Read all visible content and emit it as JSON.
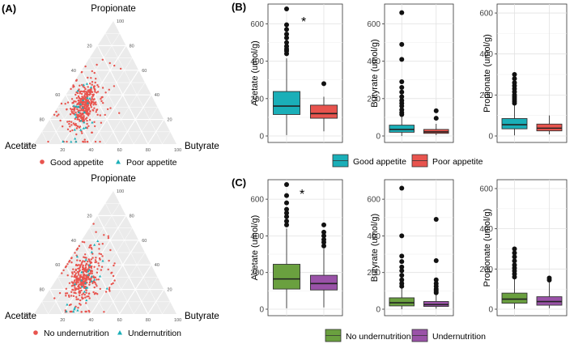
{
  "panels": {
    "A": "(A)",
    "B": "(B)",
    "C": "(C)"
  },
  "ternary": {
    "top_label": "Propionate",
    "left_label": "Acetate",
    "right_label": "Butyrate",
    "tick_values": [
      20,
      40,
      60,
      80,
      100
    ],
    "colors": {
      "red": "#e8544e",
      "teal": "#1aafb8"
    },
    "plots": [
      {
        "id": "appetite",
        "legend": [
          {
            "label": "Good appetite",
            "marker": "circle",
            "color": "#e8544e"
          },
          {
            "label": "Poor appetite",
            "marker": "triangle",
            "color": "#1aafb8"
          }
        ],
        "red_count": 360,
        "teal_count": 30,
        "centroid": {
          "acetate": 0.52,
          "butyrate": 0.18,
          "propionate": 0.3
        }
      },
      {
        "id": "undernutrition",
        "legend": [
          {
            "label": "No undernutrition",
            "marker": "circle",
            "color": "#e8544e"
          },
          {
            "label": "Undernutrition",
            "marker": "triangle",
            "color": "#1aafb8"
          }
        ],
        "red_count": 360,
        "teal_count": 30,
        "centroid": {
          "acetate": 0.52,
          "butyrate": 0.18,
          "propionate": 0.3
        }
      }
    ]
  },
  "chart_data": [
    {
      "type": "box",
      "panel": "B",
      "significance": "*",
      "facets": [
        {
          "ylabel": "Acetate (umol/g)",
          "ylim": [
            0,
            680
          ],
          "yticks": [
            0,
            200,
            400,
            600
          ],
          "boxes": [
            {
              "group": "Good appetite",
              "color": "#1aafb8",
              "min": 5,
              "q1": 115,
              "median": 160,
              "q3": 238,
              "max": 415,
              "outliers": [
                440,
                455,
                465,
                480,
                500,
                525,
                545,
                570,
                595,
                680
              ]
            },
            {
              "group": "Poor appetite",
              "color": "#e8544e",
              "min": 25,
              "q1": 95,
              "median": 120,
              "q3": 165,
              "max": 210,
              "outliers": [
                280
              ]
            }
          ]
        },
        {
          "ylabel": "Butyrate (umol/g)",
          "ylim": [
            0,
            680
          ],
          "yticks": [
            0,
            200,
            400,
            600
          ],
          "boxes": [
            {
              "group": "Good appetite",
              "color": "#1aafb8",
              "min": 0,
              "q1": 20,
              "median": 35,
              "q3": 58,
              "max": 105,
              "outliers": [
                115,
                125,
                140,
                160,
                175,
                190,
                210,
                235,
                260,
                290,
                410,
                490,
                660
              ]
            },
            {
              "group": "Poor appetite",
              "color": "#e8544e",
              "min": 5,
              "q1": 14,
              "median": 22,
              "q3": 35,
              "max": 65,
              "outliers": [
                95,
                135
              ]
            }
          ]
        },
        {
          "ylabel": "Propionate (umol/g)",
          "ylim": [
            0,
            620
          ],
          "yticks": [
            0,
            200,
            400,
            600
          ],
          "boxes": [
            {
              "group": "Good appetite",
              "color": "#1aafb8",
              "min": 3,
              "q1": 35,
              "median": 55,
              "q3": 85,
              "max": 150,
              "outliers": [
                160,
                170,
                180,
                190,
                200,
                215,
                230,
                245,
                260,
                280,
                300
              ]
            },
            {
              "group": "Poor appetite",
              "color": "#e8544e",
              "min": 8,
              "q1": 25,
              "median": 38,
              "q3": 58,
              "max": 100,
              "outliers": []
            }
          ]
        }
      ],
      "legend": [
        {
          "label": "Good appetite",
          "color": "#1aafb8"
        },
        {
          "label": "Poor appetite",
          "color": "#e8544e"
        }
      ]
    },
    {
      "type": "box",
      "panel": "C",
      "significance": "*",
      "facets": [
        {
          "ylabel": "Acetate (umol/g)",
          "ylim": [
            0,
            680
          ],
          "yticks": [
            0,
            200,
            400,
            600
          ],
          "boxes": [
            {
              "group": "No undernutrition",
              "color": "#6aa03f",
              "min": 5,
              "q1": 110,
              "median": 165,
              "q3": 245,
              "max": 440,
              "outliers": [
                460,
                480,
                505,
                525,
                545,
                580,
                620,
                680
              ]
            },
            {
              "group": "Undernutrition",
              "color": "#9a52a8",
              "min": 10,
              "q1": 105,
              "median": 140,
              "q3": 185,
              "max": 330,
              "outliers": [
                345,
                365,
                380,
                400,
                420,
                460
              ]
            }
          ]
        },
        {
          "ylabel": "Butyrate (umol/g)",
          "ylim": [
            0,
            680
          ],
          "yticks": [
            0,
            200,
            400,
            600
          ],
          "boxes": [
            {
              "group": "No undernutrition",
              "color": "#6aa03f",
              "min": 0,
              "q1": 18,
              "median": 35,
              "q3": 62,
              "max": 115,
              "outliers": [
                125,
                140,
                160,
                185,
                210,
                230,
                260,
                290,
                400,
                660
              ]
            },
            {
              "group": "Undernutrition",
              "color": "#9a52a8",
              "min": 3,
              "q1": 15,
              "median": 25,
              "q3": 42,
              "max": 80,
              "outliers": [
                90,
                100,
                110,
                125,
                140,
                160,
                265,
                490
              ]
            }
          ]
        },
        {
          "ylabel": "Propionate (umol/g)",
          "ylim": [
            0,
            620
          ],
          "yticks": [
            0,
            200,
            400,
            600
          ],
          "boxes": [
            {
              "group": "No undernutrition",
              "color": "#6aa03f",
              "min": 2,
              "q1": 30,
              "median": 50,
              "q3": 80,
              "max": 150,
              "outliers": [
                160,
                175,
                190,
                205,
                220,
                240,
                260,
                280,
                300
              ]
            },
            {
              "group": "Undernutrition",
              "color": "#9a52a8",
              "min": 5,
              "q1": 20,
              "median": 38,
              "q3": 62,
              "max": 135,
              "outliers": [
                145,
                155
              ]
            }
          ]
        }
      ],
      "legend": [
        {
          "label": "No undernutrition",
          "color": "#6aa03f"
        },
        {
          "label": "Undernutrition",
          "color": "#9a52a8"
        }
      ]
    }
  ]
}
